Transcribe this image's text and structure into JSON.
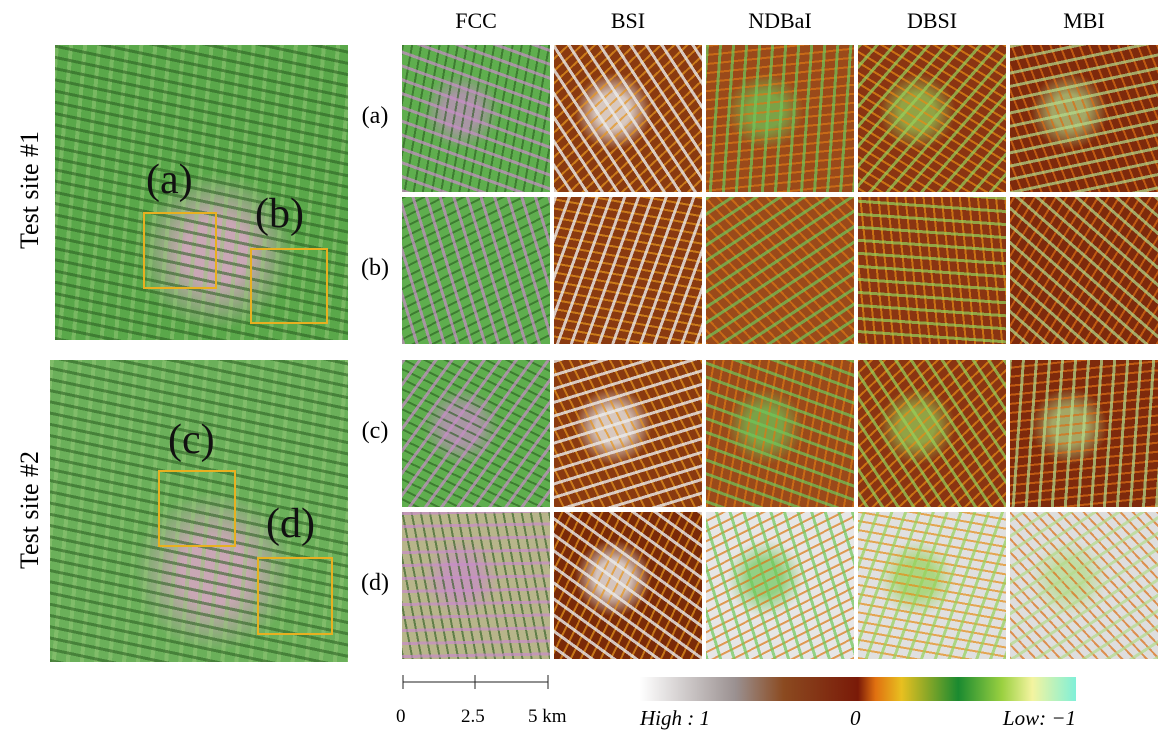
{
  "columns": [
    "FCC",
    "BSI",
    "NDBaI",
    "DBSI",
    "MBI"
  ],
  "rows": [
    "(a)",
    "(b)",
    "(c)",
    "(d)"
  ],
  "test_sites": [
    {
      "label": "Test site #1",
      "boxes": [
        "(a)",
        "(b)"
      ]
    },
    {
      "label": "Test site #2",
      "boxes": [
        "(c)",
        "(d)"
      ]
    }
  ],
  "scale_bar": {
    "ticks": [
      "0",
      "2.5",
      "5 km"
    ]
  },
  "colorbar": {
    "labels": [
      "High : 1",
      "0",
      "Low: −1"
    ]
  }
}
